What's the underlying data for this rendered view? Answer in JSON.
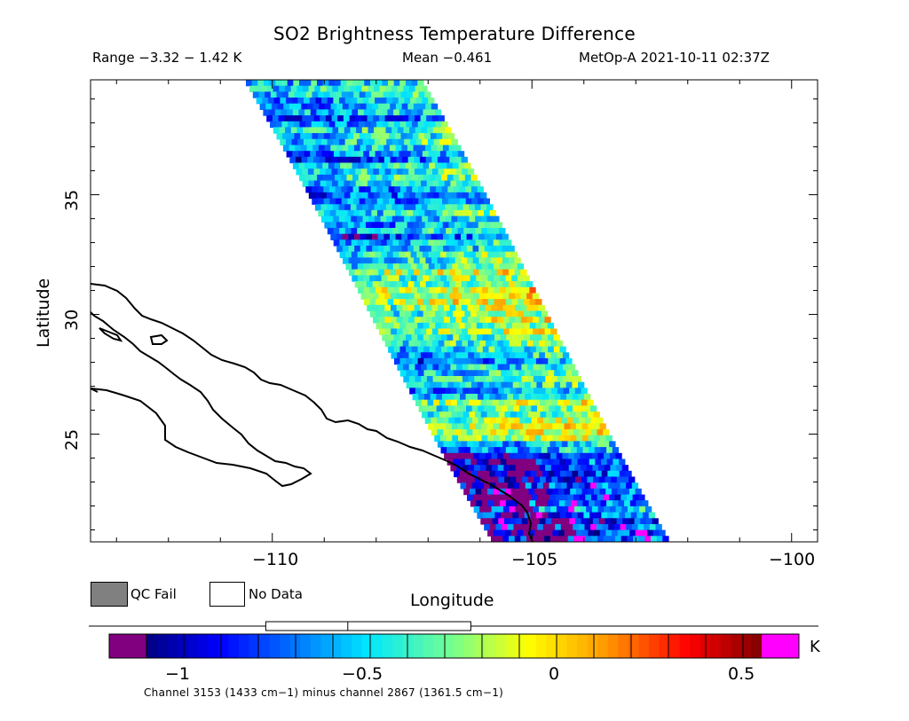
{
  "header": {
    "title": "SO2 Brightness Temperature Difference",
    "range_text": "Range −3.32 − 1.42 K",
    "mean_text": "Mean −0.461",
    "satellite_time": "MetOp-A 2021-10-11 02:37Z"
  },
  "map": {
    "ylabel": "Latitude",
    "xlabel": "Longitude",
    "lat_ticks": [
      "25",
      "30",
      "35"
    ],
    "lon_ticks": [
      "−110",
      "−105",
      "−100"
    ],
    "lon_range": [
      -113.5,
      -99.5
    ],
    "lat_range": [
      20.5,
      39.8
    ],
    "swath": {
      "description_free": true,
      "center_line_lon_lat": [
        [
          -108.9,
          39.8
        ],
        [
          -104.3,
          27.5
        ],
        [
          -103.1,
          20.5
        ]
      ]
    },
    "colors": {
      "land_outline": "#000000",
      "background": "#ffffff"
    }
  },
  "legend": {
    "qc_fail_label": "QC Fail",
    "no_data_label": "No Data",
    "qc_fail_color": "#808080",
    "no_data_color": "#ffffff"
  },
  "colorbar": {
    "units": "K",
    "ticks": [
      "−1",
      "−0.5",
      "0",
      "0.5"
    ],
    "tick_values": [
      -1,
      -0.5,
      0,
      0.5
    ],
    "range": [
      -1.2,
      0.65
    ],
    "under_color": "#800080",
    "over_color": "#ff00ff",
    "selection_range": [
      -0.78,
      -0.23
    ],
    "selection_split": -0.56
  },
  "footnote": "Channel 3153 (1433 cm−1) minus channel 2867 (1361.5 cm−1)"
}
